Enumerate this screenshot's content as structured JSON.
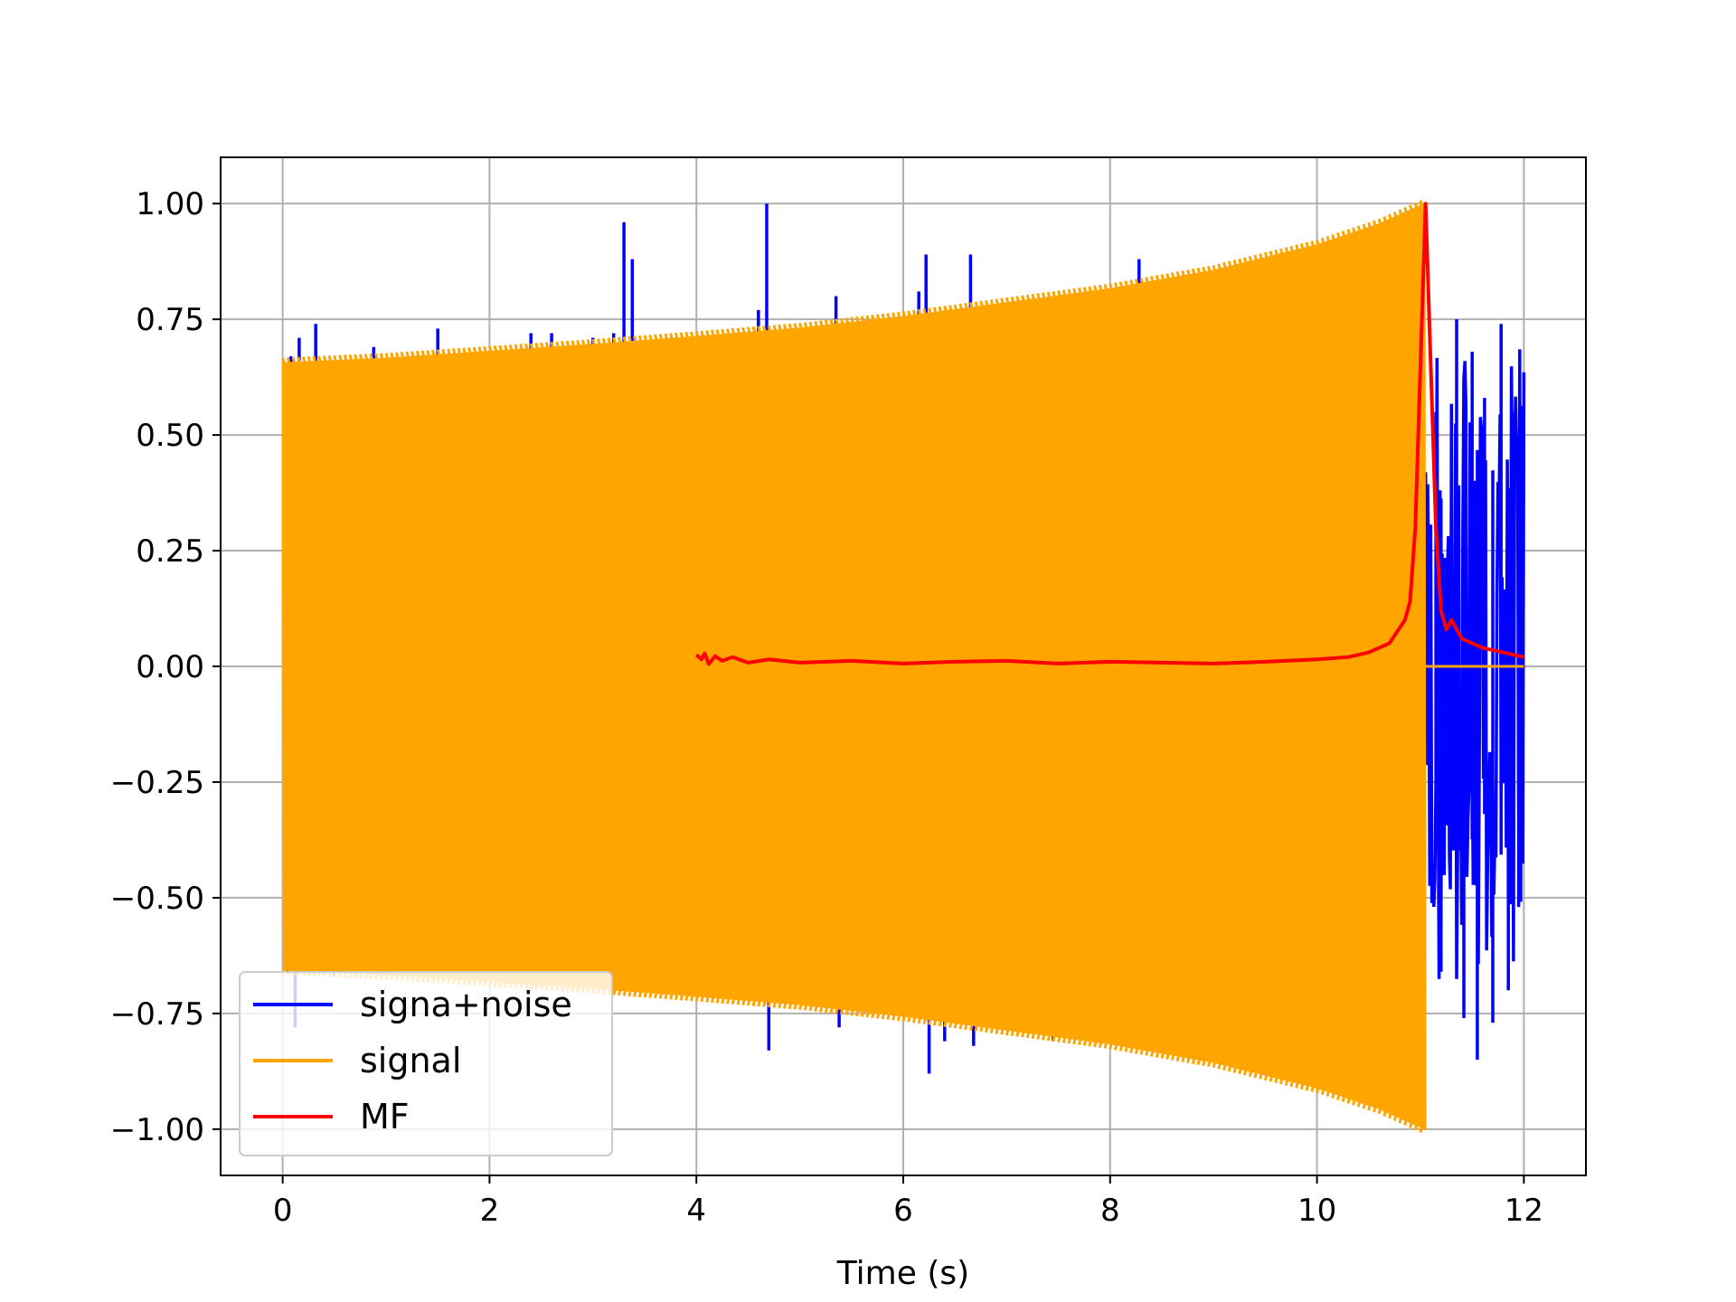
{
  "chart_data": {
    "type": "line",
    "title": "",
    "xlabel": "Time (s)",
    "ylabel": "",
    "xlim": [
      -0.6,
      12.6
    ],
    "ylim": [
      -1.1,
      1.1
    ],
    "xticks": [
      0,
      2,
      4,
      6,
      8,
      10,
      12
    ],
    "xtick_labels": [
      "0",
      "2",
      "4",
      "6",
      "8",
      "10",
      "12"
    ],
    "yticks": [
      1.0,
      0.75,
      0.5,
      0.25,
      0.0,
      -0.25,
      -0.5,
      -0.75,
      -1.0
    ],
    "ytick_labels": [
      "1.00",
      "0.75",
      "0.50",
      "0.25",
      "0.00",
      "−0.25",
      "−0.50",
      "−0.75",
      "−1.00"
    ],
    "grid": true,
    "legend_position": "lower-left",
    "series": [
      {
        "name": "signa+noise",
        "color": "#0000ff",
        "points": [
          [
            0.0,
            0.0
          ],
          [
            0.02,
            0.29
          ],
          [
            0.05,
            -0.66
          ],
          [
            0.08,
            0.67
          ],
          [
            0.12,
            -0.78
          ],
          [
            0.16,
            0.71
          ],
          [
            0.2,
            -0.66
          ],
          [
            0.32,
            0.74
          ],
          [
            0.5,
            -0.67
          ],
          [
            0.88,
            0.69
          ],
          [
            1.5,
            0.73
          ],
          [
            2.4,
            0.72
          ],
          [
            2.6,
            0.72
          ],
          [
            3.0,
            0.71
          ],
          [
            3.2,
            0.72
          ],
          [
            3.3,
            0.96
          ],
          [
            3.38,
            0.88
          ],
          [
            3.4,
            -0.7
          ],
          [
            4.6,
            0.77
          ],
          [
            4.68,
            1.0
          ],
          [
            4.7,
            -0.83
          ],
          [
            5.35,
            0.8
          ],
          [
            5.38,
            -0.78
          ],
          [
            6.15,
            0.81
          ],
          [
            6.22,
            0.89
          ],
          [
            6.25,
            -0.88
          ],
          [
            6.4,
            -0.81
          ],
          [
            6.65,
            0.89
          ],
          [
            6.68,
            -0.82
          ],
          [
            7.45,
            -0.81
          ],
          [
            8.28,
            0.88
          ],
          [
            8.3,
            -0.78
          ],
          [
            11.05,
            0.0
          ],
          [
            11.15,
            0.55
          ],
          [
            11.2,
            -0.66
          ],
          [
            11.3,
            0.38
          ],
          [
            11.35,
            0.75
          ],
          [
            11.42,
            -0.76
          ],
          [
            11.5,
            0.68
          ],
          [
            11.55,
            -0.85
          ],
          [
            11.62,
            0.58
          ],
          [
            11.7,
            -0.77
          ],
          [
            11.78,
            0.74
          ],
          [
            11.85,
            -0.7
          ],
          [
            11.9,
            0.55
          ],
          [
            11.95,
            -0.52
          ],
          [
            12.0,
            0.0
          ]
        ]
      },
      {
        "name": "signal",
        "color": "#ffa500",
        "envelope": [
          [
            0.0,
            0.655
          ],
          [
            1.0,
            0.665
          ],
          [
            2.0,
            0.68
          ],
          [
            3.0,
            0.695
          ],
          [
            4.0,
            0.712
          ],
          [
            5.0,
            0.73
          ],
          [
            6.0,
            0.755
          ],
          [
            7.0,
            0.785
          ],
          [
            8.0,
            0.815
          ],
          [
            9.0,
            0.855
          ],
          [
            10.0,
            0.91
          ],
          [
            10.6,
            0.955
          ],
          [
            11.05,
            1.0
          ]
        ],
        "end_time": 11.05,
        "after_end_value": 0.0
      },
      {
        "name": "MF",
        "color": "#ff0000",
        "points": [
          [
            4.0,
            0.025
          ],
          [
            4.05,
            0.015
          ],
          [
            4.08,
            0.028
          ],
          [
            4.12,
            0.005
          ],
          [
            4.18,
            0.022
          ],
          [
            4.25,
            0.012
          ],
          [
            4.35,
            0.02
          ],
          [
            4.5,
            0.008
          ],
          [
            4.7,
            0.015
          ],
          [
            5.0,
            0.008
          ],
          [
            5.5,
            0.012
          ],
          [
            6.0,
            0.006
          ],
          [
            6.5,
            0.01
          ],
          [
            7.0,
            0.012
          ],
          [
            7.5,
            0.006
          ],
          [
            8.0,
            0.01
          ],
          [
            8.5,
            0.008
          ],
          [
            9.0,
            0.006
          ],
          [
            9.5,
            0.01
          ],
          [
            10.0,
            0.015
          ],
          [
            10.3,
            0.02
          ],
          [
            10.5,
            0.03
          ],
          [
            10.7,
            0.05
          ],
          [
            10.85,
            0.1
          ],
          [
            10.9,
            0.14
          ],
          [
            10.95,
            0.3
          ],
          [
            11.0,
            0.65
          ],
          [
            11.05,
            1.0
          ],
          [
            11.1,
            0.65
          ],
          [
            11.15,
            0.3
          ],
          [
            11.2,
            0.12
          ],
          [
            11.25,
            0.08
          ],
          [
            11.3,
            0.1
          ],
          [
            11.4,
            0.06
          ],
          [
            11.5,
            0.05
          ],
          [
            11.6,
            0.04
          ],
          [
            11.7,
            0.035
          ],
          [
            11.8,
            0.03
          ],
          [
            11.9,
            0.025
          ],
          [
            12.0,
            0.02
          ]
        ]
      }
    ]
  }
}
